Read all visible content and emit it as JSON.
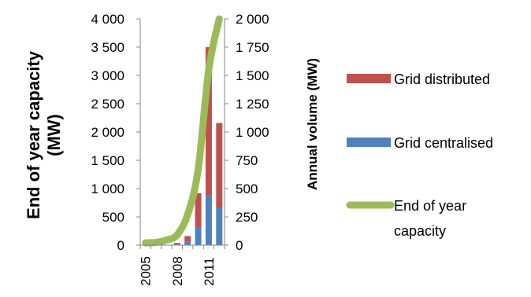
{
  "chart_data": {
    "type": "bar",
    "x": [
      "2005",
      "2006",
      "2007",
      "2008",
      "2009",
      "2010",
      "2011",
      "2012"
    ],
    "x_tick_labels": [
      "2005",
      "2008",
      "2011"
    ],
    "series": [
      {
        "name": "Grid centralised",
        "axis": "right",
        "kind": "stacked-bar",
        "color": "#4f81bd",
        "values": [
          0,
          0,
          0,
          5,
          30,
          160,
          440,
          330
        ]
      },
      {
        "name": "Grid distributed",
        "axis": "right",
        "kind": "stacked-bar",
        "color": "#c0504d",
        "values": [
          0,
          0,
          0,
          15,
          50,
          300,
          1310,
          750
        ]
      },
      {
        "name": "End of year capacity",
        "axis": "left",
        "kind": "line",
        "color": "#9bbb59",
        "values": [
          40,
          50,
          90,
          180,
          540,
          1340,
          3100,
          4000
        ]
      }
    ],
    "legend": [
      {
        "label": "Grid distributed",
        "color": "#c0504d",
        "kind": "bar"
      },
      {
        "label": "Grid centralised",
        "color": "#4f81bd",
        "kind": "bar"
      },
      {
        "label_lines": [
          "End of year",
          "capacity"
        ],
        "color": "#9bbb59",
        "kind": "line"
      }
    ],
    "left_axis": {
      "title_lines": [
        "End of year capacity",
        "(MW)"
      ],
      "ylim": [
        0,
        4000
      ],
      "ticks": [
        0,
        500,
        1000,
        1500,
        2000,
        2500,
        3000,
        3500,
        4000
      ],
      "tick_labels": [
        "0",
        "500",
        "1 000",
        "1 500",
        "2 000",
        "2 500",
        "3 000",
        "3 500",
        "4 000"
      ]
    },
    "right_axis": {
      "title": "Annual volume  (MW)",
      "ylim": [
        0,
        2000
      ],
      "ticks": [
        0,
        250,
        500,
        750,
        1000,
        1250,
        1500,
        1750,
        2000
      ],
      "tick_labels": [
        "0",
        "250",
        "500",
        "750",
        "1 000",
        "1 250",
        "1 500",
        "1 750",
        "2 000"
      ]
    },
    "legend_position": "right",
    "grid": false
  }
}
